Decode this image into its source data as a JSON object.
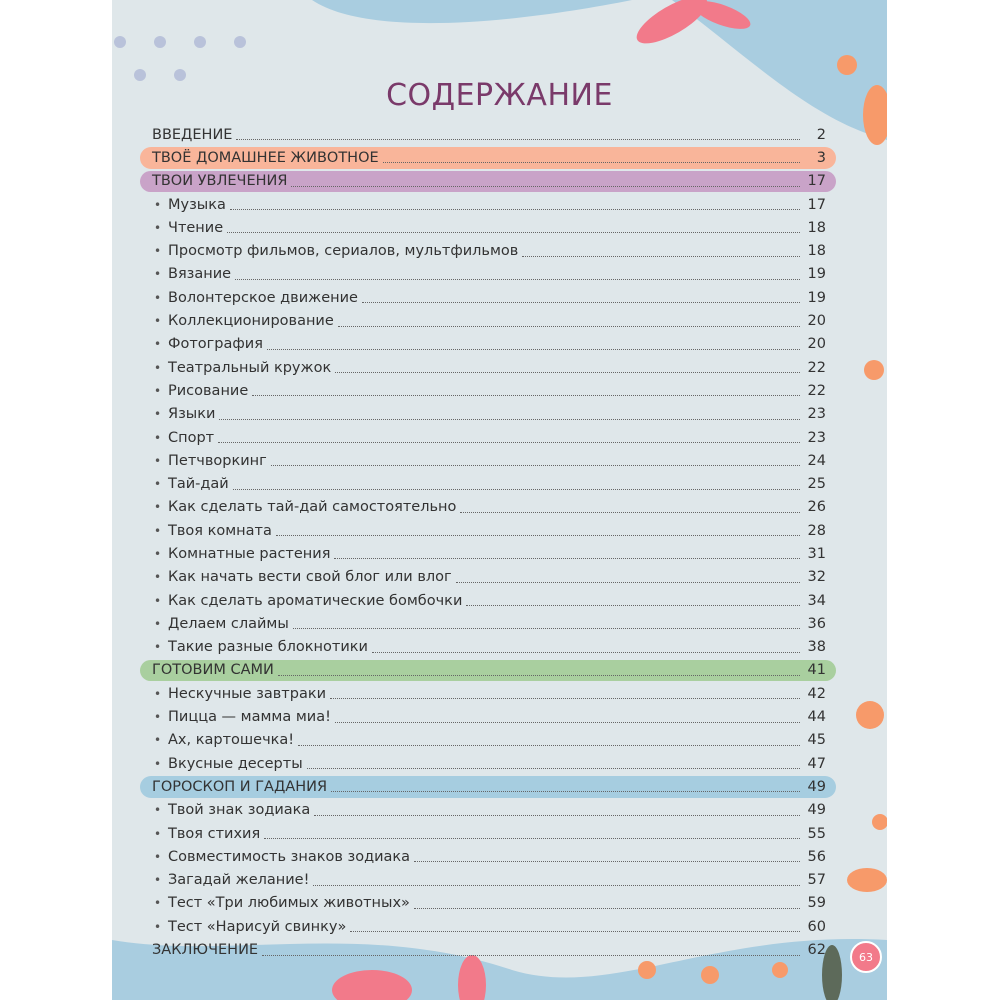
{
  "title": "СОДЕРЖАНИЕ",
  "colors": {
    "background": "#dfe7ea",
    "title": "#7a3a6a",
    "pet": "#f9b59a",
    "hobbies": "#c9a3c8",
    "cooking": "#a9cf9f",
    "horoscope": "#a6cde0",
    "badge": "#f27a8a"
  },
  "entries": [
    {
      "type": "section",
      "label": "ВВЕДЕНИЕ",
      "page": "2"
    },
    {
      "type": "section",
      "label": "ТВОЁ ДОМАШНЕЕ ЖИВОТНОЕ",
      "page": "3",
      "color": "#f9b59a"
    },
    {
      "type": "section",
      "label": "ТВОИ УВЛЕЧЕНИЯ",
      "page": "17",
      "color": "#c9a3c8"
    },
    {
      "type": "item",
      "label": "Музыка",
      "page": "17"
    },
    {
      "type": "item",
      "label": "Чтение",
      "page": "18"
    },
    {
      "type": "item",
      "label": "Просмотр фильмов, сериалов, мультфильмов",
      "page": "18"
    },
    {
      "type": "item",
      "label": "Вязание",
      "page": "19"
    },
    {
      "type": "item",
      "label": "Волонтерское движение",
      "page": "19"
    },
    {
      "type": "item",
      "label": "Коллекционирование",
      "page": "20"
    },
    {
      "type": "item",
      "label": "Фотография",
      "page": "20"
    },
    {
      "type": "item",
      "label": "Театральный кружок",
      "page": "22"
    },
    {
      "type": "item",
      "label": "Рисование",
      "page": "22"
    },
    {
      "type": "item",
      "label": "Языки",
      "page": "23"
    },
    {
      "type": "item",
      "label": "Спорт",
      "page": "23"
    },
    {
      "type": "item",
      "label": "Петчворкинг",
      "page": "24"
    },
    {
      "type": "item",
      "label": "Тай-дай",
      "page": "25"
    },
    {
      "type": "item",
      "label": "Как сделать тай-дай самостоятельно",
      "page": "26"
    },
    {
      "type": "item",
      "label": "Твоя комната",
      "page": "28"
    },
    {
      "type": "item",
      "label": "Комнатные растения",
      "page": "31"
    },
    {
      "type": "item",
      "label": "Как начать вести свой блог или влог",
      "page": "32"
    },
    {
      "type": "item",
      "label": "Как сделать ароматические бомбочки",
      "page": "34"
    },
    {
      "type": "item",
      "label": "Делаем слаймы",
      "page": "36"
    },
    {
      "type": "item",
      "label": "Такие разные блокнотики",
      "page": "38"
    },
    {
      "type": "section",
      "label": "ГОТОВИМ САМИ",
      "page": "41",
      "color": "#a9cf9f"
    },
    {
      "type": "item",
      "label": "Нескучные завтраки",
      "page": "42"
    },
    {
      "type": "item",
      "label": "Пицца — мамма миа!",
      "page": "44"
    },
    {
      "type": "item",
      "label": "Ах, картошечка!",
      "page": "45"
    },
    {
      "type": "item",
      "label": "Вкусные десерты",
      "page": "47"
    },
    {
      "type": "section",
      "label": "ГОРОСКОП И ГАДАНИЯ",
      "page": "49",
      "color": "#a6cde0"
    },
    {
      "type": "item",
      "label": "Твой знак зодиака",
      "page": "49"
    },
    {
      "type": "item",
      "label": "Твоя стихия",
      "page": "55"
    },
    {
      "type": "item",
      "label": "Совместимость знаков зодиака",
      "page": "56"
    },
    {
      "type": "item",
      "label": "Загадай желание!",
      "page": "57"
    },
    {
      "type": "item",
      "label": "Тест «Три любимых животных»",
      "page": "59"
    },
    {
      "type": "item",
      "label": "Тест «Нарисуй свинку»",
      "page": "60"
    },
    {
      "type": "section",
      "label": "ЗАКЛЮЧЕНИЕ",
      "page": "62"
    }
  ],
  "page_number": "63"
}
